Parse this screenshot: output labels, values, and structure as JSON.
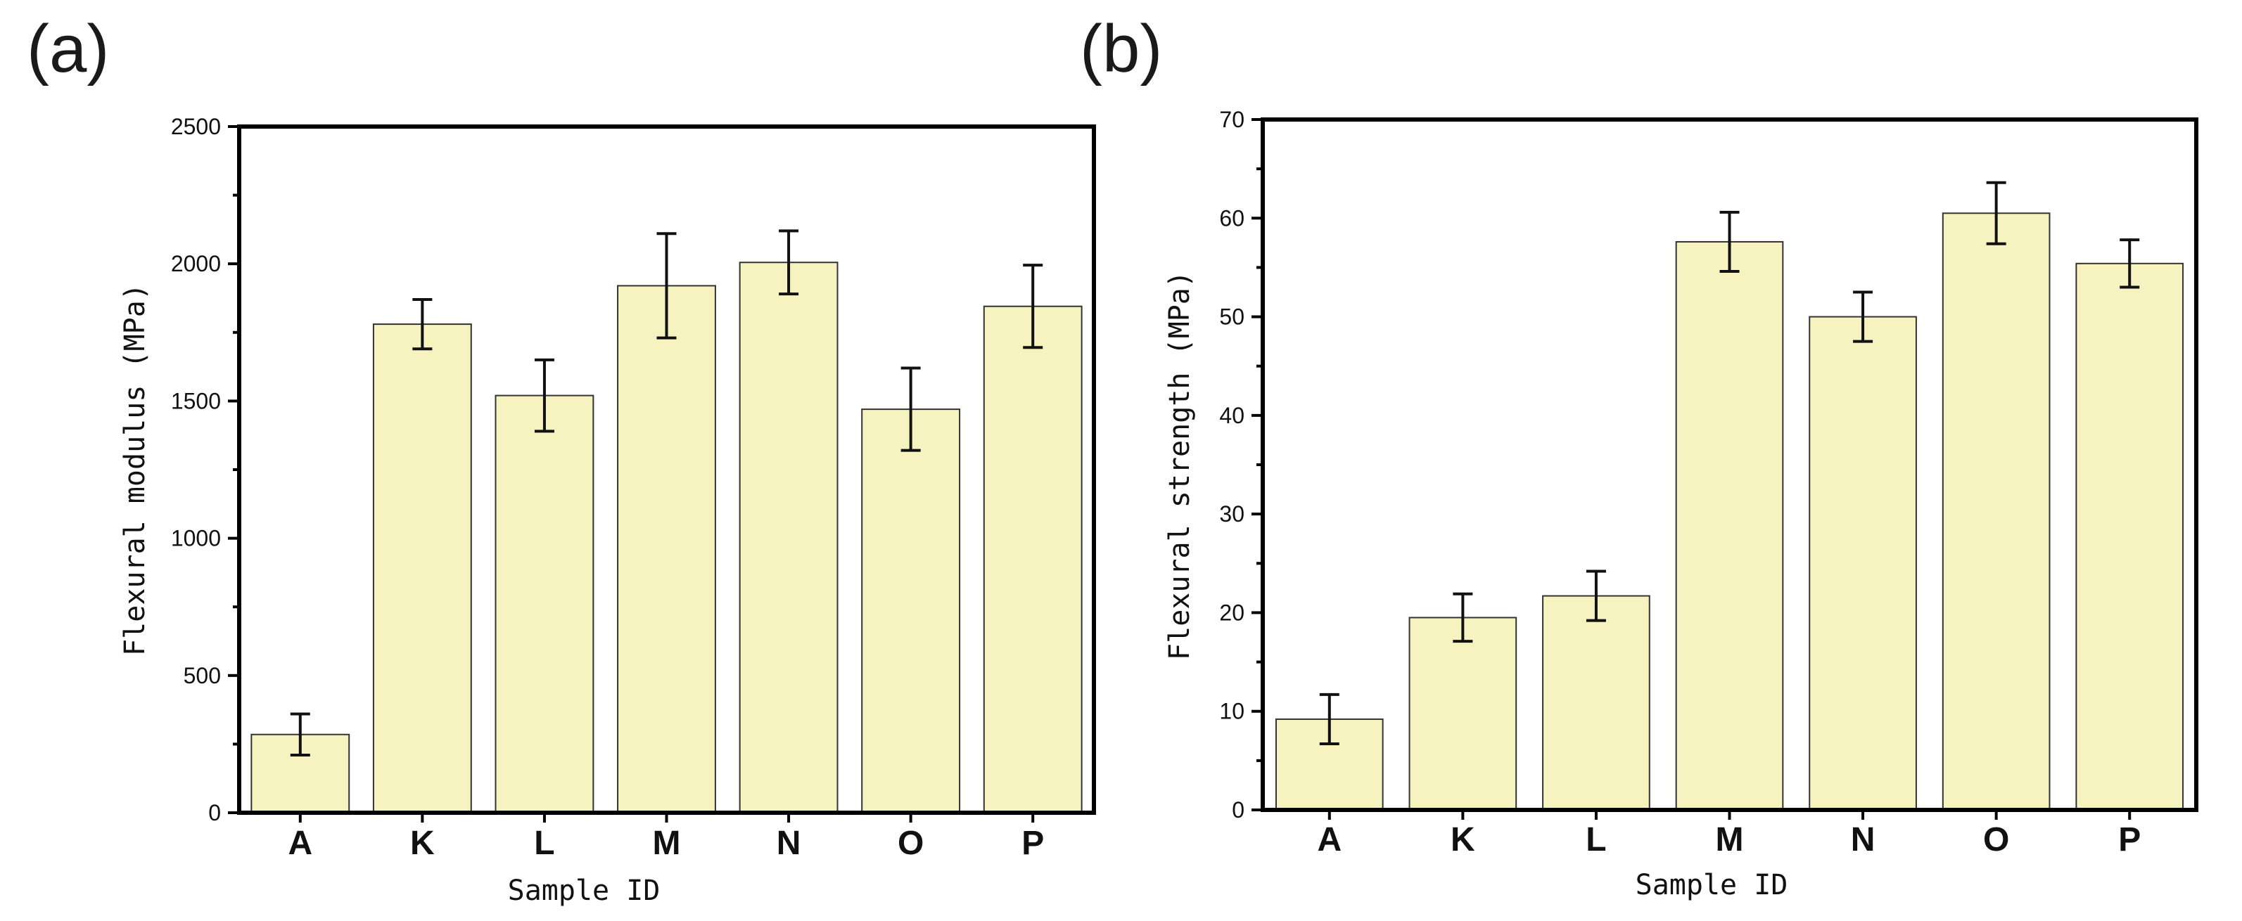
{
  "colors": {
    "bar_fill": "#f7f3c0",
    "bar_stroke": "#333333",
    "axis": "#000000"
  },
  "chart_data": [
    {
      "panel": "(a)",
      "type": "bar",
      "categories": [
        "A",
        "K",
        "L",
        "M",
        "N",
        "O",
        "P"
      ],
      "values": [
        285,
        1780,
        1520,
        1920,
        2005,
        1470,
        1845
      ],
      "errors": [
        75,
        90,
        130,
        190,
        115,
        150,
        150
      ],
      "xlabel": "Sample ID",
      "ylabel": "Flexural modulus (MPa)",
      "ylim": [
        0,
        2500
      ],
      "yticks": [
        0,
        500,
        1000,
        1500,
        2000,
        2500
      ],
      "grid": false
    },
    {
      "panel": "(b)",
      "type": "bar",
      "categories": [
        "A",
        "K",
        "L",
        "M",
        "N",
        "O",
        "P"
      ],
      "values": [
        9.2,
        19.5,
        21.7,
        57.6,
        50.0,
        60.5,
        55.4
      ],
      "errors": [
        2.5,
        2.4,
        2.5,
        3.0,
        2.5,
        3.1,
        2.4
      ],
      "xlabel": "Sample ID",
      "ylabel": "Flexural strength (MPa)",
      "ylim": [
        0,
        70
      ],
      "yticks": [
        0,
        10,
        20,
        30,
        40,
        50,
        60,
        70
      ],
      "grid": false
    }
  ]
}
